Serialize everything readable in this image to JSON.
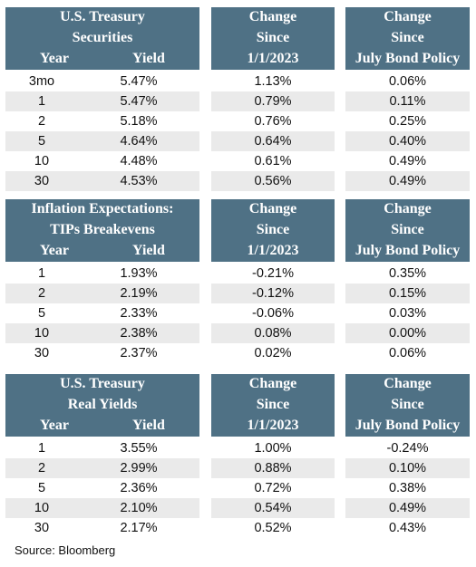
{
  "sections": [
    {
      "header": {
        "title_line1": "U.S. Treasury",
        "title_line2": "Securities",
        "year_label": "Year",
        "yield_label": "Yield",
        "change1_line1": "Change",
        "change1_line2": "Since",
        "change1_line3": "1/1/2023",
        "change2_line1": "Change",
        "change2_line2": "Since",
        "change2_line3": "July Bond Policy"
      },
      "rows": [
        {
          "year": "3mo",
          "yield": "5.47%",
          "change_since_2023": "1.13%",
          "change_since_july": "0.06%"
        },
        {
          "year": "1",
          "yield": "5.47%",
          "change_since_2023": "0.79%",
          "change_since_july": "0.11%"
        },
        {
          "year": "2",
          "yield": "5.18%",
          "change_since_2023": "0.76%",
          "change_since_july": "0.25%"
        },
        {
          "year": "5",
          "yield": "4.64%",
          "change_since_2023": "0.64%",
          "change_since_july": "0.40%"
        },
        {
          "year": "10",
          "yield": "4.48%",
          "change_since_2023": "0.61%",
          "change_since_july": "0.49%"
        },
        {
          "year": "30",
          "yield": "4.53%",
          "change_since_2023": "0.56%",
          "change_since_july": "0.49%"
        }
      ]
    },
    {
      "header": {
        "title_line1": "Inflation Expectations:",
        "title_line2": "TIPs Breakevens",
        "year_label": "Year",
        "yield_label": "Yield",
        "change1_line1": "Change",
        "change1_line2": "Since",
        "change1_line3": "1/1/2023",
        "change2_line1": "Change",
        "change2_line2": "Since",
        "change2_line3": "July Bond Policy"
      },
      "rows": [
        {
          "year": "1",
          "yield": "1.93%",
          "change_since_2023": "-0.21%",
          "change_since_july": "0.35%"
        },
        {
          "year": "2",
          "yield": "2.19%",
          "change_since_2023": "-0.12%",
          "change_since_july": "0.15%"
        },
        {
          "year": "5",
          "yield": "2.33%",
          "change_since_2023": "-0.06%",
          "change_since_july": "0.03%"
        },
        {
          "year": "10",
          "yield": "2.38%",
          "change_since_2023": "0.08%",
          "change_since_july": "0.00%"
        },
        {
          "year": "30",
          "yield": "2.37%",
          "change_since_2023": "0.02%",
          "change_since_july": "0.06%"
        }
      ]
    },
    {
      "header": {
        "title_line1": "U.S. Treasury",
        "title_line2": "Real Yields",
        "year_label": "Year",
        "yield_label": "Yield",
        "change1_line1": "Change",
        "change1_line2": "Since",
        "change1_line3": "1/1/2023",
        "change2_line1": "Change",
        "change2_line2": "Since",
        "change2_line3": "July Bond Policy"
      },
      "rows": [
        {
          "year": "1",
          "yield": "3.55%",
          "change_since_2023": "1.00%",
          "change_since_july": "-0.24%"
        },
        {
          "year": "2",
          "yield": "2.99%",
          "change_since_2023": "0.88%",
          "change_since_july": "0.10%"
        },
        {
          "year": "5",
          "yield": "2.36%",
          "change_since_2023": "0.72%",
          "change_since_july": "0.38%"
        },
        {
          "year": "10",
          "yield": "2.10%",
          "change_since_2023": "0.54%",
          "change_since_july": "0.49%"
        },
        {
          "year": "30",
          "yield": "2.17%",
          "change_since_2023": "0.52%",
          "change_since_july": "0.43%"
        }
      ]
    }
  ],
  "source": "Source: Bloomberg",
  "colors": {
    "header_bg": "#4f7185",
    "header_text": "#ffffff",
    "shaded_row": "#eaeaea"
  }
}
